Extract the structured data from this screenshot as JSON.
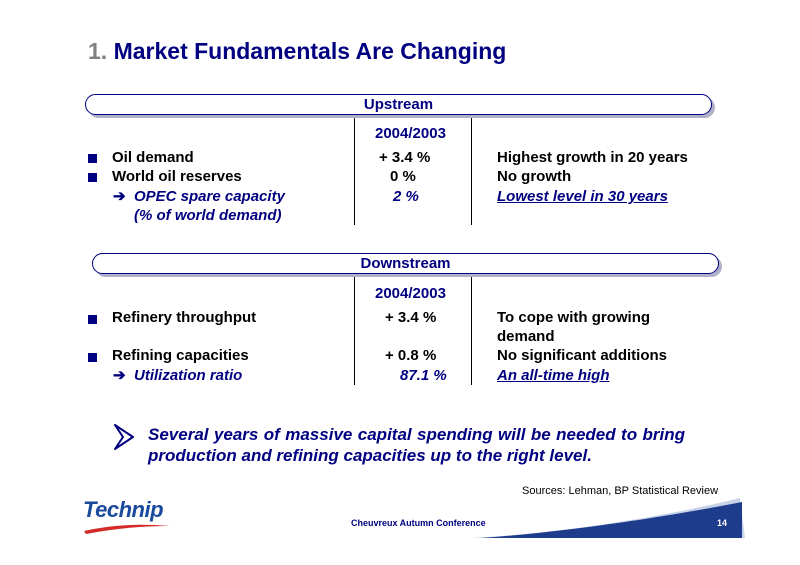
{
  "title": {
    "number": "1.",
    "text": "Market Fundamentals Are Changing"
  },
  "upstream": {
    "bar_label": "Upstream",
    "column_header": "2004/2003",
    "rows": [
      {
        "label": "Oil demand",
        "value": "+ 3.4 %",
        "comment": "Highest growth in 20 years"
      },
      {
        "label": "World oil reserves",
        "value": "0 %",
        "comment": "No growth"
      },
      {
        "label_line1": "OPEC spare capacity",
        "label_line2": "(% of world demand)",
        "value": "2 %",
        "comment": "Lowest level in 30 years"
      }
    ]
  },
  "downstream": {
    "bar_label": "Downstream",
    "column_header": "2004/2003",
    "rows": [
      {
        "label": "Refinery throughput",
        "value": "+ 3.4 %",
        "comment_line1": "To cope with growing",
        "comment_line2": "demand"
      },
      {
        "label": "Refining capacities",
        "value": "+ 0.8 %",
        "comment": "No significant additions"
      },
      {
        "label": "Utilization ratio",
        "value": "87.1 %",
        "comment": "An all-time high"
      }
    ]
  },
  "conclusion": "Several years of massive capital spending will be needed to bring production and refining capacities up to the right level.",
  "sources": "Sources: Lehman, BP Statistical Review",
  "logo_text": "Technip",
  "footer": "Cheuvreux Autumn Conference",
  "page_number": "14",
  "colors": {
    "navy": "#000080",
    "title_number": "#808080",
    "logo_blue": "#1a4a9c"
  }
}
